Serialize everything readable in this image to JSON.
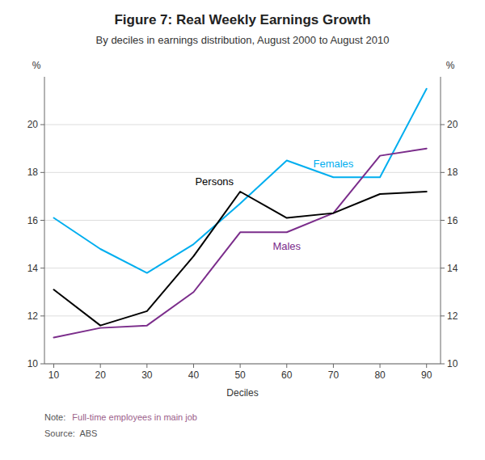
{
  "chart_data": {
    "type": "line",
    "title": "Figure 7: Real Weekly Earnings Growth",
    "subtitle": "By deciles in earnings distribution, August 2000 to August 2010",
    "xlabel": "Deciles",
    "ylabel": "%",
    "y2label": "%",
    "note_label": "Note:",
    "note_text": "Full-time employees in main job",
    "source": "Source:  ABS",
    "x": [
      10,
      20,
      30,
      40,
      50,
      60,
      70,
      80,
      90
    ],
    "series": [
      {
        "name": "Females",
        "color": "#00AEEF",
        "values": [
          16.1,
          14.8,
          13.8,
          15.0,
          16.7,
          18.5,
          17.8,
          17.8,
          21.5
        ]
      },
      {
        "name": "Males",
        "color": "#7B2D8B",
        "values": [
          11.1,
          11.5,
          11.6,
          13.0,
          15.5,
          15.5,
          16.3,
          18.7,
          19.0
        ]
      },
      {
        "name": "Persons",
        "color": "#000000",
        "values": [
          13.1,
          11.6,
          12.2,
          14.5,
          17.2,
          16.1,
          16.3,
          17.1,
          17.2
        ]
      }
    ],
    "xlim": [
      8,
      93
    ],
    "xticks": [
      10,
      20,
      30,
      40,
      50,
      60,
      70,
      80,
      90
    ],
    "ylim": [
      10,
      22
    ],
    "yticks": [
      10,
      12,
      14,
      16,
      18,
      20
    ],
    "y2lim": [
      10,
      22
    ],
    "y2ticks": [
      10,
      12,
      14,
      16,
      18,
      20
    ],
    "grid": true
  }
}
